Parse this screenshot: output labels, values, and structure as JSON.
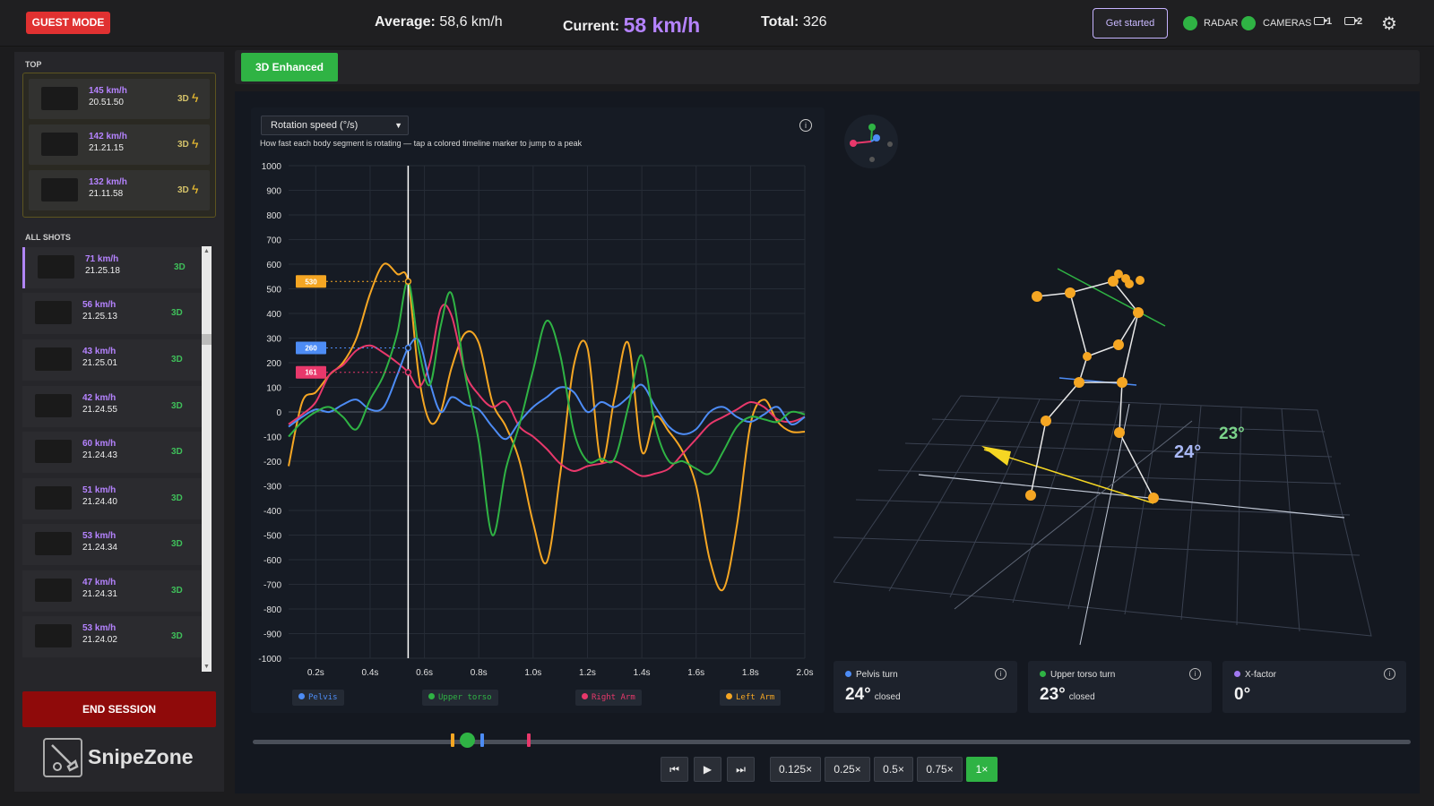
{
  "header": {
    "guest_mode": "GUEST MODE",
    "average_label": "Average:",
    "average_value": "58,6 km/h",
    "current_label": "Current:",
    "current_value": "58 km/h",
    "total_label": "Total:",
    "total_value": "326",
    "get_started": "Get started",
    "radar": "RADAR",
    "cameras": "CAMERAS",
    "cam1": "1",
    "cam2": "2",
    "status_color": "#2fb344"
  },
  "sidebar": {
    "top_label": "TOP",
    "top": [
      {
        "speed": "145 km/h",
        "time": "20.51.50",
        "tag": "3D"
      },
      {
        "speed": "142 km/h",
        "time": "21.21.15",
        "tag": "3D"
      },
      {
        "speed": "132 km/h",
        "time": "21.11.58",
        "tag": "3D"
      }
    ],
    "all_label": "ALL SHOTS",
    "shots": [
      {
        "speed": "71 km/h",
        "time": "21.25.18",
        "tag": "3D"
      },
      {
        "speed": "56 km/h",
        "time": "21.25.13",
        "tag": "3D"
      },
      {
        "speed": "43 km/h",
        "time": "21.25.01",
        "tag": "3D"
      },
      {
        "speed": "42 km/h",
        "time": "21.24.55",
        "tag": "3D"
      },
      {
        "speed": "60 km/h",
        "time": "21.24.43",
        "tag": "3D"
      },
      {
        "speed": "51 km/h",
        "time": "21.24.40",
        "tag": "3D"
      },
      {
        "speed": "53 km/h",
        "time": "21.24.34",
        "tag": "3D"
      },
      {
        "speed": "47 km/h",
        "time": "21.24.31",
        "tag": "3D"
      },
      {
        "speed": "53 km/h",
        "time": "21.24.02",
        "tag": "3D"
      }
    ],
    "end_session": "END SESSION",
    "logo": "SnipeZone"
  },
  "main": {
    "enhanced_button": "3D Enhanced",
    "dropdown_value": "Rotation speed (°/s)",
    "subtitle": "How fast each body segment is rotating — tap a colored timeline marker to jump to a peak"
  },
  "chart_data": {
    "type": "line",
    "xlim": [
      0.1,
      2.0
    ],
    "ylim": [
      -1000,
      1000
    ],
    "x_ticks": [
      "0.2s",
      "0.4s",
      "0.6s",
      "0.8s",
      "1.0s",
      "1.2s",
      "1.4s",
      "1.6s",
      "1.8s",
      "2.0s"
    ],
    "y_ticks": [
      "1000",
      "900",
      "800",
      "700",
      "600",
      "500",
      "400",
      "300",
      "200",
      "100",
      "0",
      "-100",
      "-200",
      "-300",
      "-400",
      "-500",
      "-600",
      "-700",
      "-800",
      "-900",
      "-1000"
    ],
    "cursor_x": 0.54,
    "x": [
      0.1,
      0.15,
      0.2,
      0.25,
      0.3,
      0.35,
      0.4,
      0.45,
      0.5,
      0.54,
      0.58,
      0.62,
      0.66,
      0.7,
      0.75,
      0.8,
      0.85,
      0.9,
      0.95,
      1.0,
      1.05,
      1.1,
      1.15,
      1.2,
      1.25,
      1.3,
      1.35,
      1.4,
      1.45,
      1.5,
      1.55,
      1.6,
      1.65,
      1.7,
      1.75,
      1.8,
      1.85,
      1.9,
      1.95,
      2.0
    ],
    "series": [
      {
        "name": "Pelvis",
        "color": "#4d8cf5",
        "label_value": "260",
        "values": [
          -60,
          -20,
          10,
          0,
          30,
          50,
          10,
          20,
          150,
          260,
          290,
          120,
          0,
          60,
          30,
          10,
          -60,
          -110,
          -40,
          20,
          60,
          100,
          80,
          0,
          40,
          20,
          60,
          110,
          20,
          -60,
          -90,
          -70,
          0,
          20,
          -20,
          -40,
          -10,
          20,
          -50,
          -20
        ]
      },
      {
        "name": "Upper torso",
        "color": "#2fb344",
        "label_value": "530",
        "values": [
          -100,
          -40,
          0,
          20,
          -20,
          -70,
          50,
          150,
          320,
          530,
          250,
          110,
          350,
          480,
          150,
          -120,
          -500,
          -230,
          -50,
          170,
          370,
          230,
          -80,
          -200,
          -190,
          -190,
          20,
          230,
          -60,
          -200,
          -200,
          -230,
          -250,
          -160,
          -60,
          -20,
          -30,
          -40,
          0,
          -10
        ]
      },
      {
        "name": "Right Arm",
        "color": "#e8386b",
        "label_value": "161",
        "values": [
          -50,
          -10,
          40,
          150,
          190,
          250,
          270,
          240,
          200,
          161,
          100,
          200,
          420,
          390,
          160,
          70,
          20,
          40,
          -60,
          -100,
          -150,
          -210,
          -240,
          -220,
          -210,
          -200,
          -230,
          -260,
          -250,
          -230,
          -170,
          -110,
          -50,
          -20,
          10,
          40,
          20,
          -30,
          -40,
          -20
        ]
      },
      {
        "name": "Left Arm",
        "color": "#f5a623",
        "label_value": "530",
        "values": [
          -220,
          40,
          80,
          150,
          200,
          300,
          480,
          600,
          560,
          530,
          140,
          -40,
          0,
          180,
          320,
          280,
          40,
          -60,
          -200,
          -450,
          -610,
          -250,
          190,
          260,
          -200,
          60,
          280,
          -160,
          -20,
          -80,
          -160,
          -300,
          -600,
          -720,
          -460,
          -50,
          50,
          -40,
          -80,
          -80
        ]
      }
    ]
  },
  "legend": [
    {
      "label": "Pelvis",
      "color": "#4d8cf5"
    },
    {
      "label": "Upper torso",
      "color": "#2fb344"
    },
    {
      "label": "Right Arm",
      "color": "#e8386b"
    },
    {
      "label": "Left Arm",
      "color": "#f5a623"
    }
  ],
  "angles": {
    "left_value": "24°",
    "right_value": "23°"
  },
  "cards": [
    {
      "label": "Pelvis turn",
      "value": "24°",
      "sub": "closed",
      "color": "#4d8cf5"
    },
    {
      "label": "Upper torso turn",
      "value": "23°",
      "sub": "closed",
      "color": "#2fb344"
    },
    {
      "label": "X-factor",
      "value": "0°",
      "sub": "",
      "color": "#a078f0"
    }
  ],
  "playback": {
    "speeds": [
      "0.125×",
      "0.25×",
      "0.5×",
      "0.75×",
      "1×"
    ],
    "active": "1×",
    "prev": "⏮",
    "play": "▶",
    "next": "⏭"
  }
}
